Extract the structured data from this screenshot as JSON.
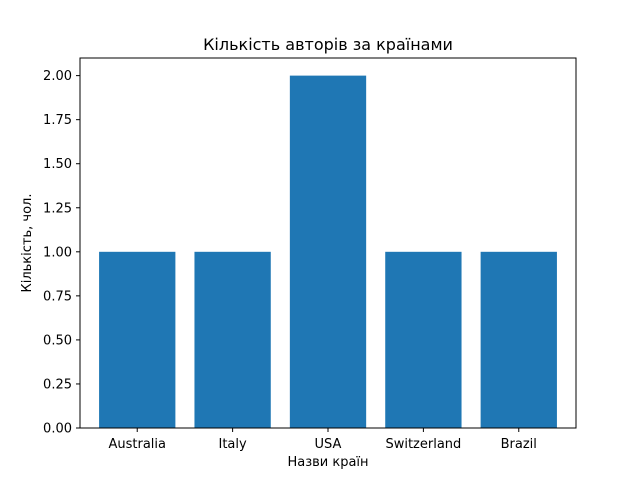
{
  "chart_data": {
    "type": "bar",
    "title": "Кількість авторів за країнами",
    "xlabel": "Назви країн",
    "ylabel": "Кількість, чол.",
    "categories": [
      "Australia",
      "Italy",
      "USA",
      "Switzerland",
      "Brazil"
    ],
    "values": [
      1,
      1,
      2,
      1,
      1
    ],
    "ylim": [
      0,
      2.1
    ],
    "yticks": [
      "0.00",
      "0.25",
      "0.50",
      "0.75",
      "1.00",
      "1.25",
      "1.50",
      "1.75",
      "2.00"
    ],
    "bar_color": "#1f77b4",
    "grid": false,
    "legend": false
  }
}
